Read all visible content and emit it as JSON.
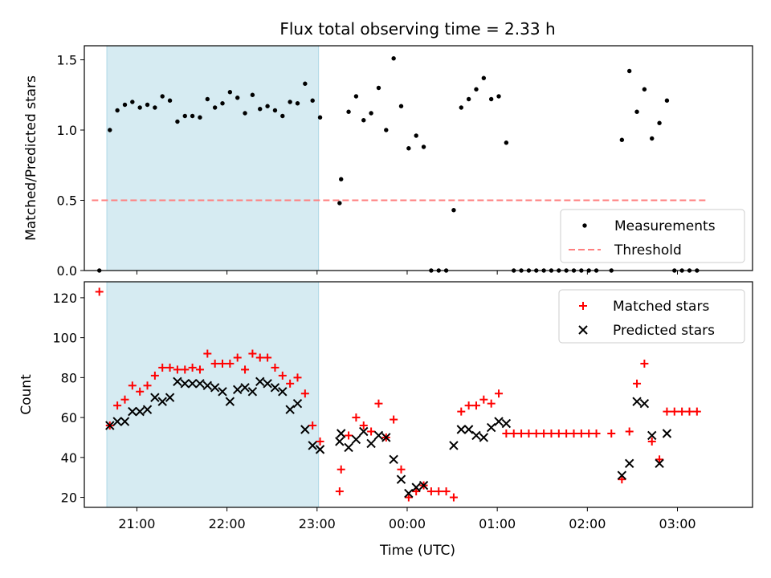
{
  "figure": {
    "title": "Flux total observing time = 2.33 h",
    "xlabel": "Time (UTC)",
    "x_tick_labels": [
      "21:00",
      "22:00",
      "23:00",
      "00:00",
      "01:00",
      "02:00",
      "03:00"
    ]
  },
  "chart_data": [
    {
      "type": "scatter",
      "ylabel": "Matched/Predicted stars",
      "ylim": [
        0,
        1.6
      ],
      "yticks": [
        0.0,
        0.5,
        1.0,
        1.5
      ],
      "y_tick_labels": [
        "0.0",
        "0.5",
        "1.0",
        "1.5"
      ],
      "xlim": [
        "20:25",
        "03:50"
      ],
      "shaded_interval": [
        "20:40",
        "23:01"
      ],
      "legend_position": "lower-right",
      "colors": {
        "shade": "#add8e6",
        "threshold": "#ff7f7f",
        "points": "#000000"
      },
      "series": [
        {
          "name": "Measurements",
          "marker": "dot",
          "points": [
            [
              "20:35",
              0.0
            ],
            [
              "20:42",
              1.0
            ],
            [
              "20:47",
              1.14
            ],
            [
              "20:52",
              1.18
            ],
            [
              "20:57",
              1.2
            ],
            [
              "21:02",
              1.16
            ],
            [
              "21:07",
              1.18
            ],
            [
              "21:12",
              1.16
            ],
            [
              "21:17",
              1.24
            ],
            [
              "21:22",
              1.21
            ],
            [
              "21:27",
              1.06
            ],
            [
              "21:32",
              1.1
            ],
            [
              "21:37",
              1.1
            ],
            [
              "21:42",
              1.09
            ],
            [
              "21:47",
              1.22
            ],
            [
              "21:52",
              1.16
            ],
            [
              "21:57",
              1.19
            ],
            [
              "22:02",
              1.27
            ],
            [
              "22:07",
              1.23
            ],
            [
              "22:12",
              1.12
            ],
            [
              "22:17",
              1.25
            ],
            [
              "22:22",
              1.15
            ],
            [
              "22:27",
              1.17
            ],
            [
              "22:32",
              1.14
            ],
            [
              "22:37",
              1.1
            ],
            [
              "22:42",
              1.2
            ],
            [
              "22:47",
              1.19
            ],
            [
              "22:52",
              1.33
            ],
            [
              "22:57",
              1.21
            ],
            [
              "23:02",
              1.09
            ],
            [
              "23:15",
              0.48
            ],
            [
              "23:16",
              0.65
            ],
            [
              "23:21",
              1.13
            ],
            [
              "23:26",
              1.24
            ],
            [
              "23:31",
              1.07
            ],
            [
              "23:36",
              1.12
            ],
            [
              "23:41",
              1.3
            ],
            [
              "23:46",
              1.0
            ],
            [
              "23:51",
              1.51
            ],
            [
              "23:56",
              1.17
            ],
            [
              "00:01",
              0.87
            ],
            [
              "00:06",
              0.96
            ],
            [
              "00:11",
              0.88
            ],
            [
              "00:16",
              0.0
            ],
            [
              "00:21",
              0.0
            ],
            [
              "00:26",
              0.0
            ],
            [
              "00:31",
              0.43
            ],
            [
              "00:36",
              1.16
            ],
            [
              "00:41",
              1.22
            ],
            [
              "00:46",
              1.29
            ],
            [
              "00:51",
              1.37
            ],
            [
              "00:56",
              1.22
            ],
            [
              "01:01",
              1.24
            ],
            [
              "01:06",
              0.91
            ],
            [
              "01:11",
              0.0
            ],
            [
              "01:16",
              0.0
            ],
            [
              "01:21",
              0.0
            ],
            [
              "01:26",
              0.0
            ],
            [
              "01:31",
              0.0
            ],
            [
              "01:36",
              0.0
            ],
            [
              "01:41",
              0.0
            ],
            [
              "01:46",
              0.0
            ],
            [
              "01:51",
              0.0
            ],
            [
              "01:56",
              0.0
            ],
            [
              "02:01",
              0.0
            ],
            [
              "02:06",
              0.0
            ],
            [
              "02:16",
              0.0
            ],
            [
              "02:23",
              0.93
            ],
            [
              "02:28",
              1.42
            ],
            [
              "02:33",
              1.13
            ],
            [
              "02:38",
              1.29
            ],
            [
              "02:43",
              0.94
            ],
            [
              "02:48",
              1.05
            ],
            [
              "02:53",
              1.21
            ],
            [
              "02:58",
              0.0
            ],
            [
              "03:03",
              0.0
            ],
            [
              "03:08",
              0.0
            ],
            [
              "03:13",
              0.0
            ]
          ]
        },
        {
          "name": "Threshold",
          "line_style": "dashed",
          "points": [
            [
              "20:30",
              0.5
            ],
            [
              "03:20",
              0.5
            ]
          ]
        }
      ]
    },
    {
      "type": "scatter",
      "ylabel": "Count",
      "ylim": [
        15,
        128
      ],
      "yticks": [
        20,
        40,
        60,
        80,
        100,
        120
      ],
      "y_tick_labels": [
        "20",
        "40",
        "60",
        "80",
        "100",
        "120"
      ],
      "xlim": [
        "20:25",
        "03:50"
      ],
      "shaded_interval": [
        "20:40",
        "23:01"
      ],
      "legend_position": "upper-right",
      "colors": {
        "shade": "#add8e6",
        "matched": "#ff0000",
        "predicted": "#000000"
      },
      "series": [
        {
          "name": "Matched stars",
          "marker": "plus",
          "points": [
            [
              "20:35",
              123
            ],
            [
              "20:42",
              56
            ],
            [
              "20:47",
              66
            ],
            [
              "20:52",
              69
            ],
            [
              "20:57",
              76
            ],
            [
              "21:02",
              73
            ],
            [
              "21:07",
              76
            ],
            [
              "21:12",
              81
            ],
            [
              "21:17",
              85
            ],
            [
              "21:22",
              85
            ],
            [
              "21:27",
              84
            ],
            [
              "21:32",
              84
            ],
            [
              "21:37",
              85
            ],
            [
              "21:42",
              84
            ],
            [
              "21:47",
              92
            ],
            [
              "21:52",
              87
            ],
            [
              "21:57",
              87
            ],
            [
              "22:02",
              87
            ],
            [
              "22:07",
              90
            ],
            [
              "22:12",
              84
            ],
            [
              "22:17",
              92
            ],
            [
              "22:22",
              90
            ],
            [
              "22:27",
              90
            ],
            [
              "22:32",
              85
            ],
            [
              "22:37",
              81
            ],
            [
              "22:42",
              77
            ],
            [
              "22:47",
              80
            ],
            [
              "22:52",
              72
            ],
            [
              "22:57",
              56
            ],
            [
              "23:02",
              48
            ],
            [
              "23:15",
              23
            ],
            [
              "23:16",
              34
            ],
            [
              "23:21",
              51
            ],
            [
              "23:26",
              60
            ],
            [
              "23:31",
              56
            ],
            [
              "23:36",
              53
            ],
            [
              "23:41",
              67
            ],
            [
              "23:46",
              50
            ],
            [
              "23:51",
              59
            ],
            [
              "23:56",
              34
            ],
            [
              "00:01",
              20
            ],
            [
              "00:06",
              23
            ],
            [
              "00:11",
              26
            ],
            [
              "00:16",
              23
            ],
            [
              "00:21",
              23
            ],
            [
              "00:26",
              23
            ],
            [
              "00:31",
              20
            ],
            [
              "00:36",
              63
            ],
            [
              "00:41",
              66
            ],
            [
              "00:46",
              66
            ],
            [
              "00:51",
              69
            ],
            [
              "00:56",
              67
            ],
            [
              "01:01",
              72
            ],
            [
              "01:06",
              52
            ],
            [
              "01:11",
              52
            ],
            [
              "01:16",
              52
            ],
            [
              "01:21",
              52
            ],
            [
              "01:26",
              52
            ],
            [
              "01:31",
              52
            ],
            [
              "01:36",
              52
            ],
            [
              "01:41",
              52
            ],
            [
              "01:46",
              52
            ],
            [
              "01:51",
              52
            ],
            [
              "01:56",
              52
            ],
            [
              "02:01",
              52
            ],
            [
              "02:06",
              52
            ],
            [
              "02:16",
              52
            ],
            [
              "02:23",
              29
            ],
            [
              "02:28",
              53
            ],
            [
              "02:33",
              77
            ],
            [
              "02:38",
              87
            ],
            [
              "02:43",
              48
            ],
            [
              "02:48",
              39
            ],
            [
              "02:53",
              63
            ],
            [
              "02:58",
              63
            ],
            [
              "03:03",
              63
            ],
            [
              "03:08",
              63
            ],
            [
              "03:13",
              63
            ]
          ]
        },
        {
          "name": "Predicted stars",
          "marker": "x",
          "points": [
            [
              "20:42",
              56
            ],
            [
              "20:47",
              58
            ],
            [
              "20:52",
              58
            ],
            [
              "20:57",
              63
            ],
            [
              "21:02",
              63
            ],
            [
              "21:07",
              64
            ],
            [
              "21:12",
              70
            ],
            [
              "21:17",
              68
            ],
            [
              "21:22",
              70
            ],
            [
              "21:27",
              78
            ],
            [
              "21:32",
              77
            ],
            [
              "21:37",
              77
            ],
            [
              "21:42",
              77
            ],
            [
              "21:47",
              76
            ],
            [
              "21:52",
              75
            ],
            [
              "21:57",
              73
            ],
            [
              "22:02",
              68
            ],
            [
              "22:07",
              74
            ],
            [
              "22:12",
              75
            ],
            [
              "22:17",
              73
            ],
            [
              "22:22",
              78
            ],
            [
              "22:27",
              77
            ],
            [
              "22:32",
              75
            ],
            [
              "22:37",
              73
            ],
            [
              "22:42",
              64
            ],
            [
              "22:47",
              67
            ],
            [
              "22:52",
              54
            ],
            [
              "22:57",
              46
            ],
            [
              "23:02",
              44
            ],
            [
              "23:15",
              48
            ],
            [
              "23:16",
              52
            ],
            [
              "23:21",
              45
            ],
            [
              "23:26",
              49
            ],
            [
              "23:31",
              53
            ],
            [
              "23:36",
              47
            ],
            [
              "23:41",
              51
            ],
            [
              "23:46",
              50
            ],
            [
              "23:51",
              39
            ],
            [
              "23:56",
              29
            ],
            [
              "00:01",
              22
            ],
            [
              "00:06",
              25
            ],
            [
              "00:11",
              26
            ],
            [
              "00:31",
              46
            ],
            [
              "00:36",
              54
            ],
            [
              "00:41",
              54
            ],
            [
              "00:46",
              51
            ],
            [
              "00:51",
              50
            ],
            [
              "00:56",
              55
            ],
            [
              "01:01",
              58
            ],
            [
              "01:06",
              57
            ],
            [
              "02:23",
              31
            ],
            [
              "02:28",
              37
            ],
            [
              "02:33",
              68
            ],
            [
              "02:38",
              67
            ],
            [
              "02:43",
              51
            ],
            [
              "02:48",
              37
            ],
            [
              "02:53",
              52
            ]
          ]
        }
      ]
    }
  ]
}
